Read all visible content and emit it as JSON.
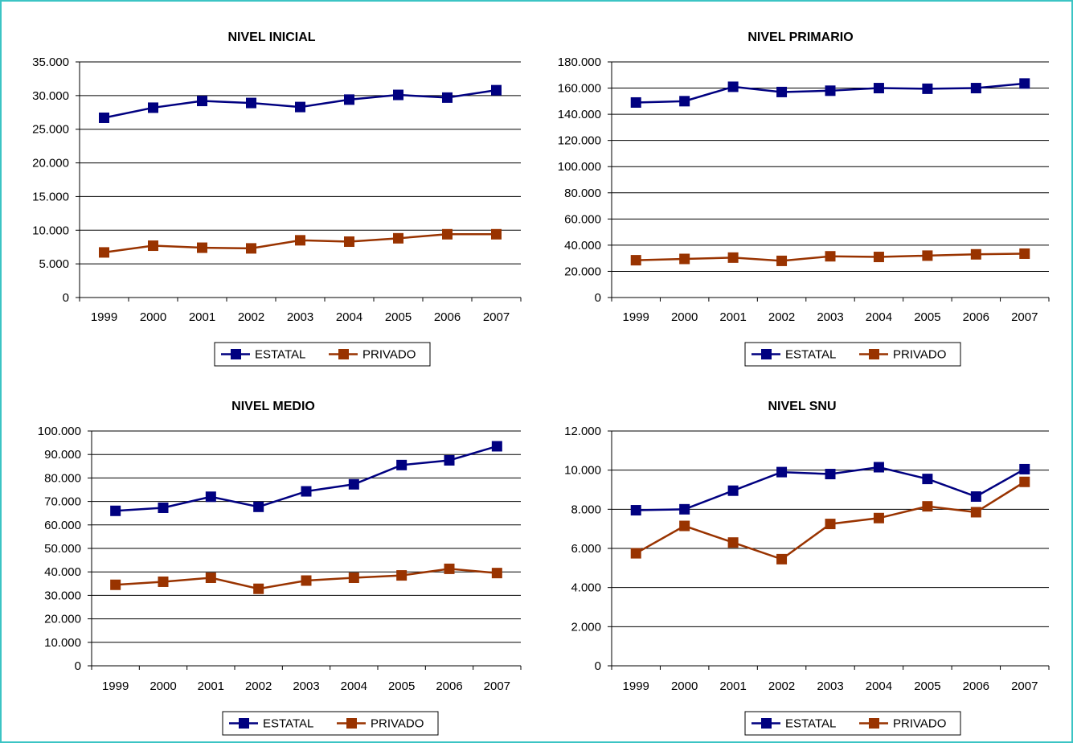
{
  "chart_data": [
    {
      "type": "line",
      "title": "NIVEL INICIAL",
      "categories": [
        "1999",
        "2000",
        "2001",
        "2002",
        "2003",
        "2004",
        "2005",
        "2006",
        "2007"
      ],
      "ylim": [
        0,
        35000
      ],
      "yticks": [
        0,
        5000,
        10000,
        15000,
        20000,
        25000,
        30000,
        35000
      ],
      "ytick_labels": [
        "0",
        "5.000",
        "10.000",
        "15.000",
        "20.000",
        "25.000",
        "30.000",
        "35.000"
      ],
      "grid": true,
      "legend_position": "bottom",
      "series": [
        {
          "name": "ESTATAL",
          "color": "#000080",
          "values": [
            26700,
            28200,
            29200,
            28900,
            28300,
            29400,
            30100,
            29700,
            30800
          ]
        },
        {
          "name": "PRIVADO",
          "color": "#993300",
          "values": [
            6700,
            7700,
            7400,
            7300,
            8500,
            8300,
            8800,
            9400,
            9400
          ]
        }
      ]
    },
    {
      "type": "line",
      "title": "NIVEL PRIMARIO",
      "categories": [
        "1999",
        "2000",
        "2001",
        "2002",
        "2003",
        "2004",
        "2005",
        "2006",
        "2007"
      ],
      "ylim": [
        0,
        180000
      ],
      "yticks": [
        0,
        20000,
        40000,
        60000,
        80000,
        100000,
        120000,
        140000,
        160000,
        180000
      ],
      "ytick_labels": [
        "0",
        "20.000",
        "40.000",
        "60.000",
        "80.000",
        "100.000",
        "120.000",
        "140.000",
        "160.000",
        "180.000"
      ],
      "grid": true,
      "legend_position": "bottom",
      "series": [
        {
          "name": "ESTATAL",
          "color": "#000080",
          "values": [
            149000,
            150000,
            161000,
            157000,
            158000,
            160000,
            159500,
            160000,
            163500
          ]
        },
        {
          "name": "PRIVADO",
          "color": "#993300",
          "values": [
            28500,
            29500,
            30500,
            28000,
            31500,
            31000,
            32000,
            33000,
            33500
          ]
        }
      ]
    },
    {
      "type": "line",
      "title": "NIVEL MEDIO",
      "categories": [
        "1999",
        "2000",
        "2001",
        "2002",
        "2003",
        "2004",
        "2005",
        "2006",
        "2007"
      ],
      "ylim": [
        0,
        100000
      ],
      "yticks": [
        0,
        10000,
        20000,
        30000,
        40000,
        50000,
        60000,
        70000,
        80000,
        90000,
        100000
      ],
      "ytick_labels": [
        "0",
        "10.000",
        "20.000",
        "30.000",
        "40.000",
        "50.000",
        "60.000",
        "70.000",
        "80.000",
        "90.000",
        "100.000"
      ],
      "grid": true,
      "legend_position": "bottom",
      "series": [
        {
          "name": "ESTATAL",
          "color": "#000080",
          "values": [
            66000,
            67300,
            72000,
            67700,
            74300,
            77300,
            85500,
            87500,
            93500
          ]
        },
        {
          "name": "PRIVADO",
          "color": "#993300",
          "values": [
            34500,
            35800,
            37500,
            32800,
            36300,
            37500,
            38500,
            41300,
            39500
          ]
        }
      ]
    },
    {
      "type": "line",
      "title": "NIVEL SNU",
      "categories": [
        "1999",
        "2000",
        "2001",
        "2002",
        "2003",
        "2004",
        "2005",
        "2006",
        "2007"
      ],
      "ylim": [
        0,
        12000
      ],
      "yticks": [
        0,
        2000,
        4000,
        6000,
        8000,
        10000,
        12000
      ],
      "ytick_labels": [
        "0",
        "2.000",
        "4.000",
        "6.000",
        "8.000",
        "10.000",
        "12.000"
      ],
      "grid": true,
      "legend_position": "bottom",
      "series": [
        {
          "name": "ESTATAL",
          "color": "#000080",
          "values": [
            7950,
            8000,
            8950,
            9900,
            9800,
            10150,
            9550,
            8650,
            10050
          ]
        },
        {
          "name": "PRIVADO",
          "color": "#993300",
          "values": [
            5750,
            7150,
            6300,
            5450,
            7250,
            7550,
            8150,
            7850,
            9400
          ]
        }
      ]
    }
  ]
}
